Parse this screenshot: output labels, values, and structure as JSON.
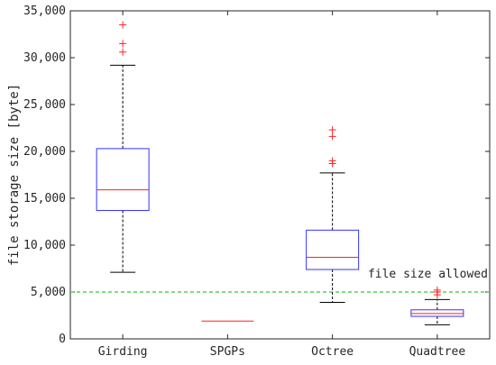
{
  "chart_data": {
    "type": "box",
    "title": "",
    "xlabel": "",
    "ylabel": "file storage size [byte]",
    "ylim": [
      0,
      35000
    ],
    "yticks": [
      0,
      5000,
      10000,
      15000,
      20000,
      25000,
      30000,
      35000
    ],
    "ytick_labels": [
      "0",
      "5,000",
      "10,000",
      "15,000",
      "20,000",
      "25,000",
      "30,000",
      "35,000"
    ],
    "categories": [
      "Girding",
      "SPGPs",
      "Octree",
      "Quadtree"
    ],
    "boxes": [
      {
        "category": "Girding",
        "whisker_low": 7100,
        "q1": 13700,
        "median": 15900,
        "q3": 20300,
        "whisker_high": 29200,
        "outliers": [
          30600,
          31500,
          33500
        ]
      },
      {
        "category": "SPGPs",
        "whisker_low": 1900,
        "q1": 1900,
        "median": 1900,
        "q3": 1900,
        "whisker_high": 1900,
        "outliers": []
      },
      {
        "category": "Octree",
        "whisker_low": 3900,
        "q1": 7400,
        "median": 8700,
        "q3": 11600,
        "whisker_high": 17700,
        "outliers": [
          18700,
          19000,
          21600,
          22300
        ]
      },
      {
        "category": "Quadtree",
        "whisker_low": 1500,
        "q1": 2400,
        "median": 2700,
        "q3": 3100,
        "whisker_high": 4200,
        "outliers": [
          4700,
          5000,
          5200
        ]
      }
    ],
    "reference_line": {
      "y": 5000,
      "label": "file size allowed",
      "color": "#33cc33",
      "style": "dashed"
    },
    "colors": {
      "box": "#3333ff",
      "median": "#ff2020",
      "outlier": "#ff2020",
      "whisker": "#000000",
      "axis": "#262626"
    },
    "grid": false,
    "legend": "none"
  }
}
